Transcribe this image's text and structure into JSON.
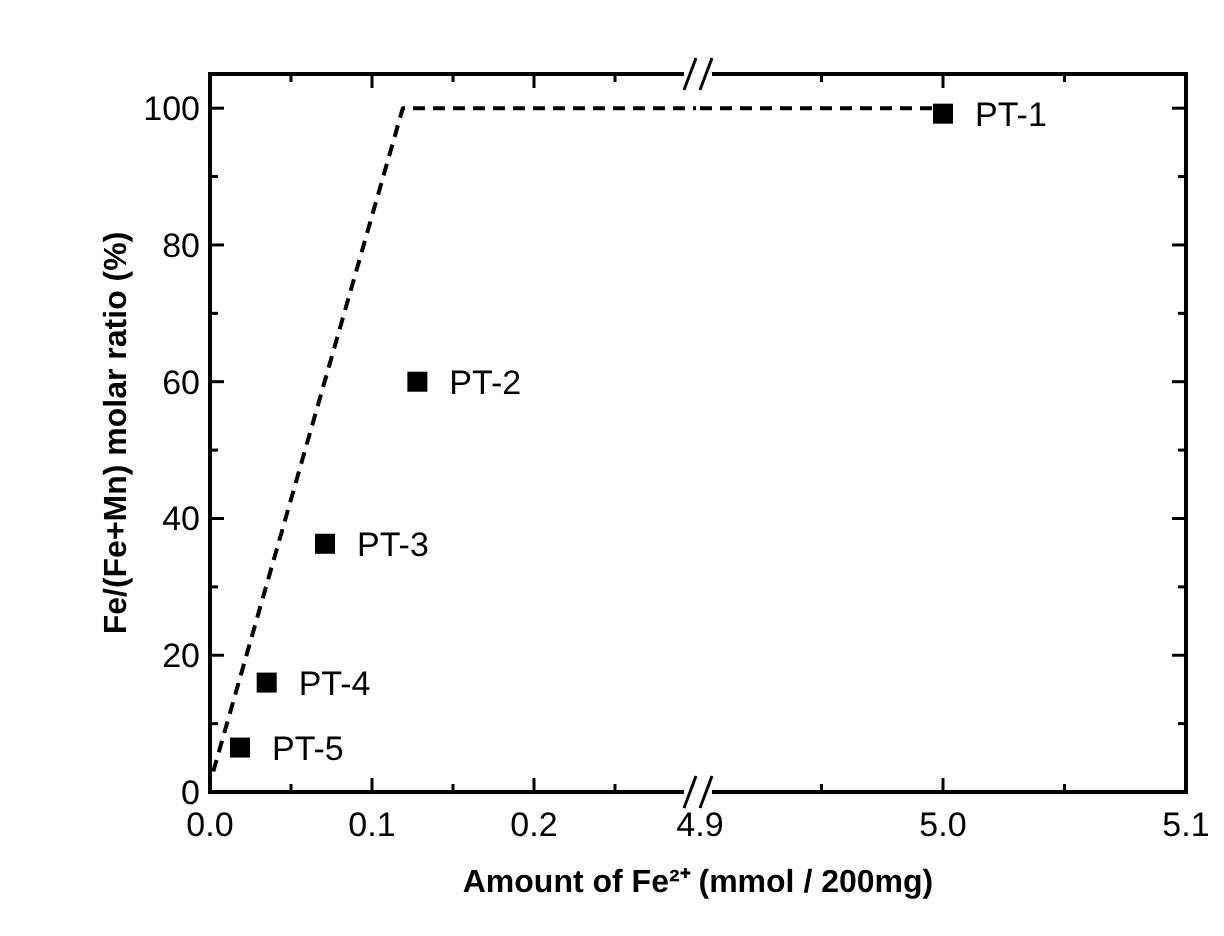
{
  "chart_data": [
    {
      "type": "scatter",
      "ylabel": "Fe/(Fe+Mn) molar ratio (%)",
      "xlabel": "Amount of Fe²⁺ (mmol / 200mg)",
      "xlim": [
        0,
        0.3
      ],
      "xticks": [
        {
          "value": 0,
          "label": "0.0"
        },
        {
          "value": 0.05,
          "label": null
        },
        {
          "value": 0.1,
          "label": "0.1"
        },
        {
          "value": 0.15,
          "label": null
        },
        {
          "value": 0.2,
          "label": "0.2"
        },
        {
          "value": 0.25,
          "label": null
        }
      ],
      "ylim": [
        0,
        105
      ],
      "yticks": [
        0,
        {
          "value": 10,
          "label": null
        },
        20,
        {
          "value": 30,
          "label": null
        },
        40,
        {
          "value": 50,
          "label": null
        },
        60,
        {
          "value": 70,
          "label": null
        },
        80,
        {
          "value": 90,
          "label": null
        },
        100
      ],
      "marker": "square",
      "series": [
        {
          "color": "#000000",
          "x": [
            0.128,
            0.071,
            0.035,
            0.0185
          ],
          "values": [
            60,
            36.3,
            16,
            6.5
          ]
        },
        {
          "type": "line",
          "color": "#000000",
          "line_style": "dashed",
          "marker": "none",
          "x": [
            0.002,
            0.119,
            0.3
          ],
          "values": [
            3,
            100,
            100
          ]
        }
      ],
      "annotations": [
        {
          "text": "PT-2",
          "x": 0.128,
          "y": 60
        },
        {
          "text": "PT-3",
          "x": 0.071,
          "y": 36.3
        },
        {
          "text": "PT-4",
          "x": 0.035,
          "y": 16
        },
        {
          "text": "PT-5",
          "x": 0.0185,
          "y": 6.5
        }
      ]
    },
    {
      "type": "scatter",
      "xlim": [
        4.9,
        5.1
      ],
      "xticks": [
        4.9,
        {
          "value": 4.95,
          "label": null
        },
        {
          "value": 5,
          "label": "5.0"
        },
        {
          "value": 5.05,
          "label": null
        },
        5.1
      ],
      "ylim": [
        0,
        105
      ],
      "yticks": [
        0,
        {
          "value": 10,
          "label": null
        },
        20,
        {
          "value": 30,
          "label": null
        },
        40,
        {
          "value": 50,
          "label": null
        },
        60,
        {
          "value": 70,
          "label": null
        },
        80,
        {
          "value": 90,
          "label": null
        },
        100
      ],
      "tick_labels": "x",
      "marker": "square",
      "series": [
        {
          "color": "#000000",
          "x": [
            5.0
          ],
          "values": [
            99.2
          ]
        },
        {
          "type": "line",
          "color": "#000000",
          "line_style": "dashed",
          "marker": "none",
          "x": [
            4.9,
            5.0
          ],
          "values": [
            100,
            100
          ]
        }
      ],
      "annotations": [
        {
          "text": "PT-1",
          "x": 5.0,
          "y": 99.2
        }
      ]
    }
  ]
}
